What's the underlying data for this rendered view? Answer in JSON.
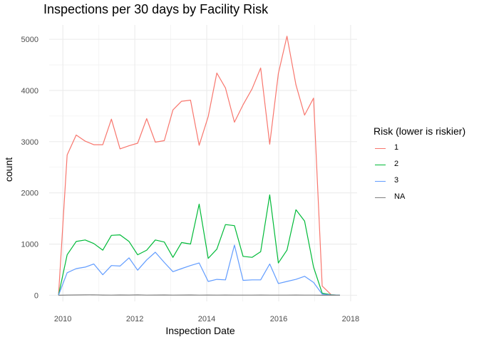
{
  "chart_data": {
    "type": "line",
    "title": "Inspections per 30 days by Facility Risk",
    "xlabel": "Inspection Date",
    "ylabel": "count",
    "xlim": [
      2009.62,
      2018.18
    ],
    "ylim": [
      -120,
      5280
    ],
    "x_ticks": [
      2010,
      2012,
      2014,
      2016,
      2018
    ],
    "x_tick_labels": [
      "2010",
      "2012",
      "2014",
      "2016",
      "2018"
    ],
    "y_ticks": [
      0,
      1000,
      2000,
      3000,
      4000,
      5000
    ],
    "y_tick_labels": [
      "0",
      "1000",
      "2000",
      "3000",
      "4000",
      "5000"
    ],
    "grid": true,
    "legend": {
      "title": "Risk (lower is riskier)",
      "position": "right"
    },
    "x": [
      2009.88,
      2010.12,
      2010.37,
      2010.62,
      2010.86,
      2011.11,
      2011.35,
      2011.59,
      2011.84,
      2012.08,
      2012.33,
      2012.57,
      2012.82,
      2013.06,
      2013.3,
      2013.55,
      2013.79,
      2014.04,
      2014.28,
      2014.52,
      2014.77,
      2015.01,
      2015.26,
      2015.5,
      2015.75,
      2015.99,
      2016.23,
      2016.48,
      2016.72,
      2016.97,
      2017.21,
      2017.46,
      2017.7
    ],
    "series": [
      {
        "name": "1",
        "color": "#F8766D",
        "values": [
          0,
          2740,
          3130,
          3010,
          2940,
          2940,
          3440,
          2860,
          2920,
          2970,
          3450,
          2990,
          3020,
          3620,
          3790,
          3810,
          2930,
          3490,
          4340,
          4050,
          3380,
          3720,
          4030,
          4440,
          2950,
          4330,
          5060,
          4110,
          3520,
          3850,
          180,
          10,
          0
        ]
      },
      {
        "name": "2",
        "color": "#00BA38",
        "values": [
          0,
          790,
          1050,
          1080,
          1010,
          880,
          1170,
          1180,
          1050,
          790,
          880,
          1080,
          1040,
          740,
          1030,
          1000,
          1780,
          720,
          900,
          1380,
          1360,
          760,
          740,
          850,
          1960,
          630,
          880,
          1670,
          1450,
          550,
          40,
          10,
          0
        ]
      },
      {
        "name": "3",
        "color": "#619CFF",
        "values": [
          0,
          440,
          520,
          550,
          610,
          400,
          580,
          570,
          730,
          490,
          690,
          840,
          640,
          460,
          520,
          580,
          630,
          270,
          310,
          300,
          980,
          290,
          300,
          300,
          610,
          230,
          270,
          310,
          370,
          250,
          20,
          5,
          0
        ]
      },
      {
        "name": "NA",
        "color": "#7F7F7F",
        "values": [
          0,
          4,
          5,
          6,
          8,
          4,
          3,
          5,
          4,
          6,
          3,
          4,
          5,
          3,
          4,
          5,
          3,
          4,
          3,
          4,
          3,
          2,
          3,
          4,
          3,
          2,
          3,
          4,
          3,
          2,
          0,
          0,
          0
        ]
      }
    ]
  }
}
